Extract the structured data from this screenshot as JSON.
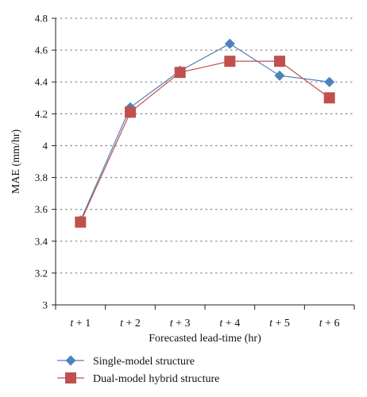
{
  "chart_data": {
    "type": "line",
    "categories": [
      "t + 1",
      "t + 2",
      "t + 3",
      "t + 4",
      "t + 5",
      "t + 6"
    ],
    "category_parts": [
      {
        "var": "t",
        "rest": " + 1"
      },
      {
        "var": "t",
        "rest": " + 2"
      },
      {
        "var": "t",
        "rest": " + 3"
      },
      {
        "var": "t",
        "rest": " + 4"
      },
      {
        "var": "t",
        "rest": " + 5"
      },
      {
        "var": "t",
        "rest": " + 6"
      }
    ],
    "series": [
      {
        "name": "Single-model structure",
        "values": [
          3.53,
          4.24,
          4.47,
          4.64,
          4.44,
          4.4
        ],
        "color": "#4F81BD",
        "marker": "diamond"
      },
      {
        "name": "Dual-model hybrid structure",
        "values": [
          3.52,
          4.21,
          4.46,
          4.53,
          4.53,
          4.3
        ],
        "color": "#C0504D",
        "marker": "square"
      }
    ],
    "xlabel": "Forecasted lead-time (hr)",
    "ylabel": "MAE (mm/hr)",
    "ylim": [
      3,
      4.8
    ],
    "yticks": [
      "3",
      "3.2",
      "3.4",
      "3.6",
      "3.8",
      "4",
      "4.2",
      "4.4",
      "4.6",
      "4.8"
    ],
    "grid": true,
    "legend_position": "bottom-left"
  }
}
